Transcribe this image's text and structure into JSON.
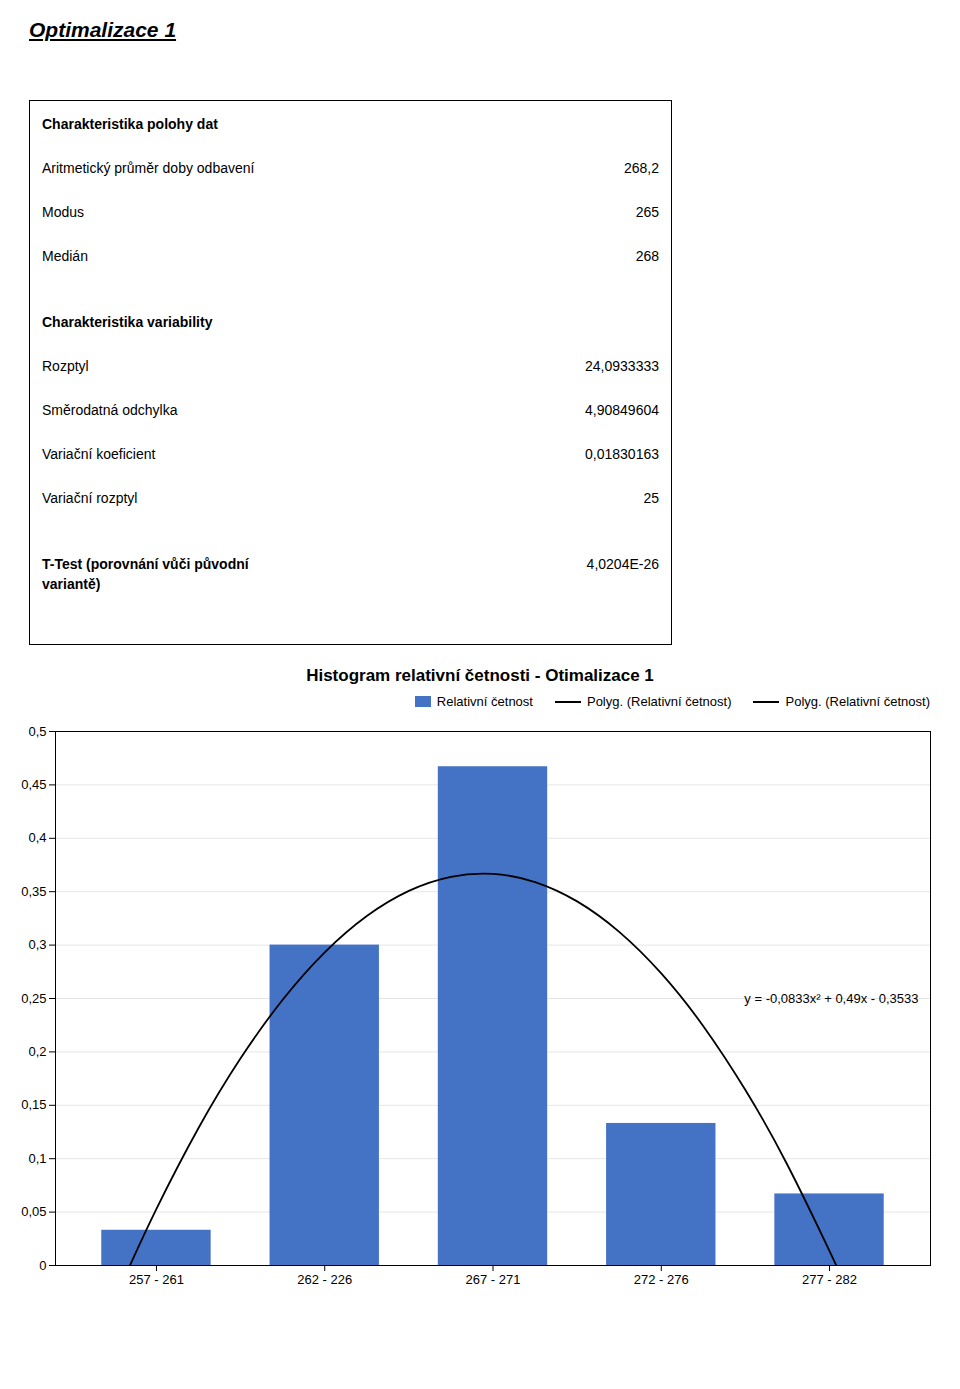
{
  "title": "Optimalizace 1",
  "table": [
    {
      "heading": "Charakteristika polohy dat",
      "rows": [
        [
          "Aritmetický průměr doby odbavení",
          "268,2"
        ],
        [
          "Modus",
          "265"
        ],
        [
          "Medián",
          "268"
        ]
      ]
    },
    {
      "heading": "Charakteristika variability",
      "rows": [
        [
          "Rozptyl",
          "24,0933333"
        ],
        [
          "Směrodatná odchylka",
          "4,90849604"
        ],
        [
          "Variační koeficient",
          "0,01830163"
        ],
        [
          "Variační rozptyl",
          "25"
        ]
      ]
    },
    {
      "heading": "T-Test (porovnání vůči původní\nvariantě)",
      "value": "4,0204E-26"
    }
  ],
  "chart_data": {
    "type": "bar",
    "title": "Histogram relativní četnosti - Otimalizace 1",
    "categories": [
      "257 - 261",
      "262 - 226",
      "267 - 271",
      "272 - 276",
      "277 - 282"
    ],
    "series": [
      {
        "name": "Relativní četnost",
        "type": "bar",
        "color": "#4472C4",
        "values": [
          0.033,
          0.3,
          0.467,
          0.133,
          0.067
        ]
      },
      {
        "name": "Polyg. (Relativní četnost)",
        "type": "line",
        "color": "black",
        "x": [
          -0.15768,
          0,
          0.25,
          0.5,
          0.75,
          1,
          1.25,
          1.5,
          1.75,
          2,
          2.25,
          2.5,
          2.75,
          3,
          3.25,
          3.5,
          3.75,
          4,
          4.03893
        ],
        "values": [
          0,
          0.053086,
          0.128758,
          0.194011,
          0.248843,
          0.293257,
          0.327251,
          0.350825,
          0.363979,
          0.366714,
          0.359029,
          0.340925,
          0.312401,
          0.273457,
          0.224093,
          0.16431,
          0.094108,
          0.013485,
          0
        ]
      },
      {
        "name": "Polyg. (Relativní četnost)",
        "type": "line",
        "color": "black"
      }
    ],
    "xlim": [
      -0.6,
      4.6
    ],
    "ylim": [
      0,
      0.5
    ],
    "yticks": [
      0,
      {
        "value": 0.05,
        "label": "0,05"
      },
      {
        "value": 0.1,
        "label": "0,1"
      },
      {
        "value": 0.15,
        "label": "0,15"
      },
      {
        "value": 0.2,
        "label": "0,2"
      },
      {
        "value": 0.25,
        "label": "0,25"
      },
      {
        "value": 0.3,
        "label": "0,3"
      },
      {
        "value": 0.35,
        "label": "0,35"
      },
      {
        "value": 0.4,
        "label": "0,4"
      },
      {
        "value": 0.45,
        "label": "0,45"
      },
      {
        "value": 0.5,
        "label": "0,5"
      }
    ],
    "grid": true,
    "legend": "upper right",
    "annotations": [
      {
        "text": "y = -0,0833x² + 0,49x - 0,3533"
      }
    ]
  }
}
